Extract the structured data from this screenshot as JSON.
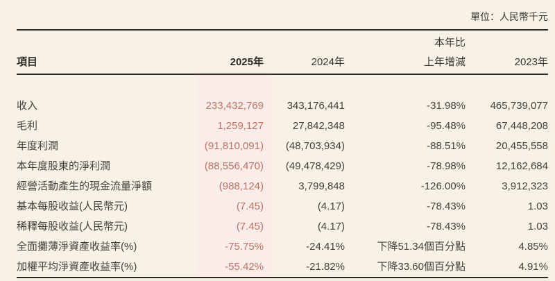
{
  "unit_note": "單位：人民幣千元",
  "colors": {
    "page_background": "#f8f1e6",
    "highlight_column_background": "#f9ece9",
    "highlight_text": "#bd7464",
    "body_text": "#45423c",
    "heading_and_rule": "#2b2925"
  },
  "table": {
    "header": {
      "item_label": "項目",
      "col_2025": "2025年",
      "col_2024": "2024年",
      "col_change_line1": "本年比",
      "col_change_line2": "上年增減",
      "col_2023": "2023年"
    },
    "rows": [
      {
        "label": "收入",
        "y2025": "233,432,769",
        "y2024": "343,176,441",
        "change": "-31.98%",
        "y2023": "465,739,077"
      },
      {
        "label": "毛利",
        "y2025": "1,259,127",
        "y2024": "27,842,348",
        "change": "-95.48%",
        "y2023": "67,448,208"
      },
      {
        "label": "年度利潤",
        "y2025": "(91,810,091)",
        "y2024": "(48,703,934)",
        "change": "-88.51%",
        "y2023": "20,455,558"
      },
      {
        "label": "本年度股東的淨利潤",
        "y2025": "(88,556,470)",
        "y2024": "(49,478,429)",
        "change": "-78.98%",
        "y2023": "12,162,684"
      },
      {
        "label": "經營活動產生的現金流量淨額",
        "y2025": "(988,124)",
        "y2024": "3,799,848",
        "change": "-126.00%",
        "y2023": "3,912,323"
      },
      {
        "label": "基本每股收益(人民幣元)",
        "y2025": "(7.45)",
        "y2024": "(4.17)",
        "change": "-78.43%",
        "y2023": "1.03"
      },
      {
        "label": "稀釋每股收益(人民幣元)",
        "y2025": "(7.45)",
        "y2024": "(4.17)",
        "change": "-78.43%",
        "y2023": "1.03"
      },
      {
        "label": "全面攤薄淨資產收益率(%)",
        "y2025": "-75.75%",
        "y2024": "-24.41%",
        "change": "下降51.34個百分點",
        "y2023": "4.85%"
      },
      {
        "label": "加權平均淨資產收益率(%)",
        "y2025": "-55.42%",
        "y2024": "-21.82%",
        "change": "下降33.60個百分點",
        "y2023": "4.91%"
      }
    ]
  }
}
